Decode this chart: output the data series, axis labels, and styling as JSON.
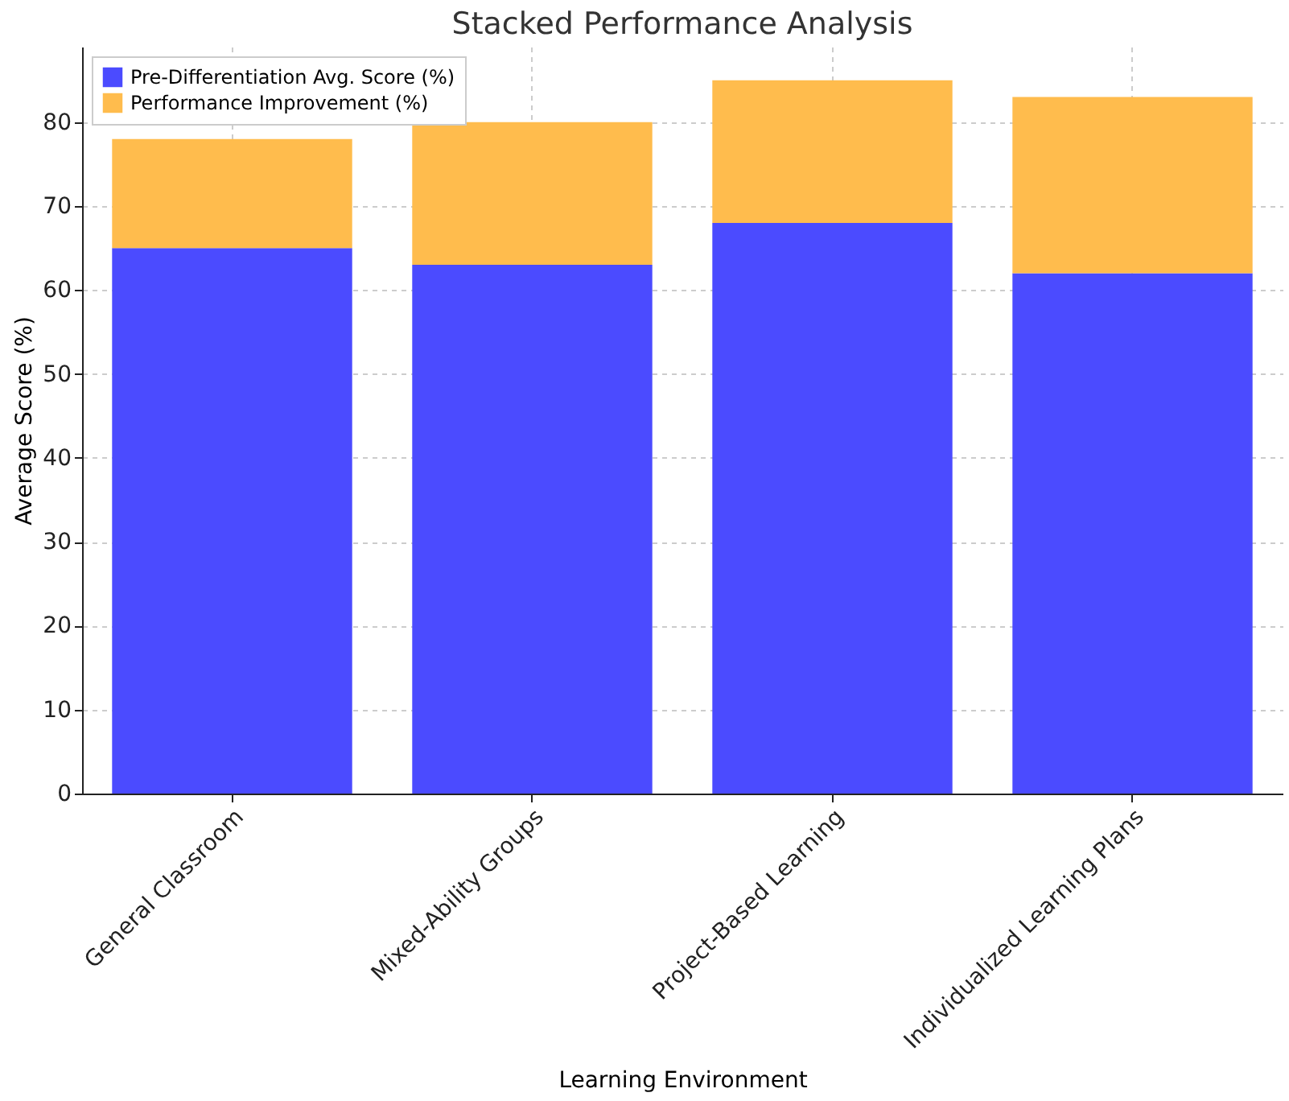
{
  "chart_data": {
    "type": "bar",
    "title": "Stacked Performance Analysis",
    "xlabel": "Learning Environment",
    "ylabel": "Average Score (%)",
    "categories": [
      "General Classroom",
      "Mixed-Ability Groups",
      "Project-Based Learning",
      "Individualized Learning Plans"
    ],
    "series": [
      {
        "name": "Pre-Differentiation Avg. Score (%)",
        "color": "#4b4bff",
        "values": [
          65,
          63,
          68,
          62
        ]
      },
      {
        "name": "Performance Improvement (%)",
        "color": "#ffbc4d",
        "values": [
          13,
          17,
          17,
          21
        ]
      }
    ],
    "stacked": true,
    "ylim": [
      0,
      89
    ],
    "yticks": [
      0,
      10,
      20,
      30,
      40,
      50,
      60,
      70,
      80
    ],
    "grid": true,
    "legend": "top left"
  }
}
